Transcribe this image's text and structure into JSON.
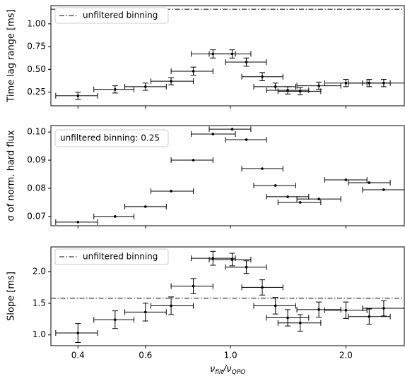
{
  "chart_data": [
    {
      "type": "errorbar",
      "ylabel": "Time lag range [ms]",
      "xscale": "log",
      "color": "#000000",
      "x": [
        0.4,
        0.5,
        0.6,
        0.7,
        0.8,
        0.9,
        1.01,
        1.1,
        1.21,
        1.31,
        1.41,
        1.52,
        1.7,
        2.0,
        2.3,
        2.51
      ],
      "xerr_minus": [
        0.05,
        0.06,
        0.07,
        0.08,
        0.1,
        0.11,
        0.13,
        0.13,
        0.14,
        0.16,
        0.17,
        0.19,
        0.21,
        0.24,
        0.27,
        0.3
      ],
      "xerr_plus": [
        0.05,
        0.06,
        0.08,
        0.1,
        0.1,
        0.13,
        0.12,
        0.14,
        0.16,
        0.17,
        0.19,
        0.2,
        0.24,
        0.27,
        0.31,
        0.33
      ],
      "values": [
        0.21,
        0.28,
        0.31,
        0.37,
        0.48,
        0.67,
        0.67,
        0.58,
        0.42,
        0.31,
        0.27,
        0.26,
        0.32,
        0.35,
        0.35,
        0.35
      ],
      "yerr": [
        0.04,
        0.04,
        0.04,
        0.04,
        0.045,
        0.045,
        0.045,
        0.045,
        0.045,
        0.04,
        0.04,
        0.04,
        0.04,
        0.04,
        0.04,
        0.04
      ],
      "hline": 1.16,
      "hline_label": "unfiltered binning",
      "xlim": [
        0.34,
        2.84
      ],
      "ylim": [
        0.1,
        1.2
      ],
      "xticks": [
        0.4,
        0.6,
        1,
        2
      ],
      "show_xticklabels": false,
      "yticks": [
        {
          "value": 0.25,
          "label": "0.25"
        },
        {
          "value": 0.5,
          "label": "0.50"
        },
        {
          "value": 0.75,
          "label": "0.75"
        },
        {
          "value": 1,
          "label": "1.00"
        }
      ]
    },
    {
      "type": "errorbar",
      "ylabel": "σ of norm. hard flux",
      "xscale": "log",
      "color": "#000000",
      "x": [
        0.4,
        0.5,
        0.6,
        0.7,
        0.8,
        0.9,
        1.01,
        1.1,
        1.21,
        1.31,
        1.41,
        1.52,
        1.7,
        2.0,
        2.3,
        2.51
      ],
      "xerr_minus": [
        0.05,
        0.06,
        0.07,
        0.08,
        0.1,
        0.11,
        0.13,
        0.13,
        0.14,
        0.16,
        0.17,
        0.19,
        0.21,
        0.24,
        0.27,
        0.3
      ],
      "xerr_plus": [
        0.05,
        0.06,
        0.08,
        0.1,
        0.1,
        0.13,
        0.12,
        0.14,
        0.16,
        0.17,
        0.19,
        0.2,
        0.24,
        0.27,
        0.31,
        0.33
      ],
      "values": [
        0.068,
        0.07,
        0.0735,
        0.079,
        0.09,
        0.0993,
        0.101,
        0.0973,
        0.087,
        0.081,
        0.077,
        0.075,
        0.0762,
        0.083,
        0.082,
        0.0795
      ],
      "annotation": "unfiltered binning: 0.25",
      "xlim": [
        0.34,
        2.84
      ],
      "ylim": [
        0.0667,
        0.1023
      ],
      "xticks": [
        0.4,
        0.6,
        1,
        2
      ],
      "show_xticklabels": false,
      "yticks": [
        0.07,
        0.08,
        0.09,
        {
          "value": 0.1,
          "label": "0.10"
        }
      ]
    },
    {
      "type": "errorbar",
      "ylabel": "Slope [ms]",
      "xscale": "log",
      "color": "#000000",
      "xlabel": [
        "ν",
        "filt",
        "/ν",
        "QPO"
      ],
      "x": [
        0.4,
        0.5,
        0.6,
        0.7,
        0.8,
        0.9,
        1.01,
        1.1,
        1.21,
        1.31,
        1.41,
        1.52,
        1.7,
        2.0,
        2.3,
        2.51
      ],
      "xerr_minus": [
        0.05,
        0.06,
        0.07,
        0.08,
        0.1,
        0.11,
        0.13,
        0.13,
        0.14,
        0.16,
        0.17,
        0.19,
        0.21,
        0.24,
        0.27,
        0.3
      ],
      "xerr_plus": [
        0.05,
        0.06,
        0.08,
        0.1,
        0.1,
        0.13,
        0.12,
        0.14,
        0.16,
        0.17,
        0.19,
        0.2,
        0.24,
        0.27,
        0.31,
        0.33
      ],
      "values": [
        1.03,
        1.24,
        1.36,
        1.46,
        1.77,
        2.21,
        2.19,
        2.07,
        1.75,
        1.46,
        1.27,
        1.19,
        1.4,
        1.39,
        1.29,
        1.42
      ],
      "yerr": [
        0.15,
        0.14,
        0.14,
        0.14,
        0.12,
        0.11,
        0.1,
        0.1,
        0.12,
        0.13,
        0.13,
        0.13,
        0.12,
        0.13,
        0.12,
        0.12
      ],
      "hline": 1.58,
      "hline_label": "unfiltered binning",
      "xlim": [
        0.34,
        2.84
      ],
      "ylim": [
        0.83,
        2.39
      ],
      "xticks": [
        {
          "value": 0.4,
          "label": "0.4"
        },
        {
          "value": 0.6,
          "label": "0.6"
        },
        {
          "value": 1,
          "label": "1.0"
        },
        {
          "value": 2,
          "label": "2.0"
        }
      ],
      "show_xticklabels": true,
      "yticks": [
        {
          "value": 1,
          "label": "1.0"
        },
        1.5,
        {
          "value": 2,
          "label": "2.0"
        }
      ]
    }
  ]
}
